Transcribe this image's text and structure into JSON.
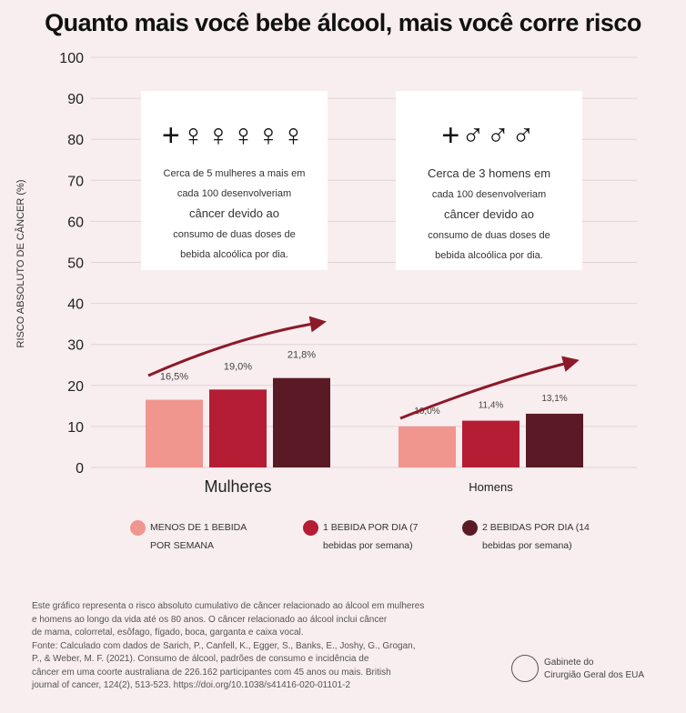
{
  "title": "Quanto mais você bebe álcool, mais você corre risco",
  "chart_data": {
    "type": "bar",
    "title": "Quanto mais você bebe álcool, mais você corre risco",
    "ylabel": "RISCO ABSOLUTO DE CÂNCER (%)",
    "ylim": [
      0,
      100
    ],
    "yticks": [
      "0",
      "10",
      "20",
      "30",
      "40",
      "50",
      "60",
      "70",
      "80",
      "90",
      "100"
    ],
    "categories": [
      "Mulheres",
      "Homens"
    ],
    "series": [
      {
        "name": "MENOS DE 1 BEBIDA POR SEMANA",
        "color": "#f0968e",
        "values": [
          16.5,
          10.0
        ],
        "labels": [
          "16,5%",
          "10,0%"
        ]
      },
      {
        "name": "1 BEBIDA POR DIA (7 bebidas por semana)",
        "color": "#b51d35",
        "values": [
          19.0,
          11.4
        ],
        "labels": [
          "19,0%",
          "11,4%"
        ]
      },
      {
        "name": "2 BEBIDAS POR DIA (14 bebidas por semana)",
        "color": "#5a1a25",
        "values": [
          21.8,
          13.1
        ],
        "labels": [
          "21,8%",
          "13,1%"
        ]
      }
    ],
    "grid": true,
    "legend": "bottom"
  },
  "legend": [
    {
      "line1": "MENOS DE 1 BEBIDA",
      "line2": "POR SEMANA"
    },
    {
      "line1": "1 BEBIDA POR DIA (7",
      "line2": "bebidas por semana)"
    },
    {
      "line1": "2 BEBIDAS POR DIA (14",
      "line2": "bebidas por semana)"
    }
  ],
  "callouts": [
    {
      "icons": "+ woman x5",
      "l1": "Cerca de 5 mulheres a mais em",
      "l2": "cada 100 desenvolveriam",
      "l3": "câncer devido ao",
      "l4": "consumo de duas doses de",
      "l5": "bebida alcoólica por dia."
    },
    {
      "icons": "+ man x3",
      "l1": "Cerca de 3 homens em",
      "l2": "cada 100 desenvolveriam",
      "l3": "câncer devido ao",
      "l4": "consumo de duas doses de",
      "l5": "bebida alcoólica por dia."
    }
  ],
  "footnote": {
    "l1": "Este gráfico representa o risco absoluto cumulativo de câncer relacionado ao álcool em mulheres",
    "l2": "e homens ao longo da vida até os 80 anos. O câncer relacionado ao álcool inclui câncer",
    "l3": "de mama, colorretal, esôfago, fígado, boca, garganta e caixa vocal.",
    "l4": "Fonte: Calculado com dados de Sarich, P., Canfell, K., Egger, S., Banks, E., Joshy, G., Grogan,",
    "l5": "P., & Weber, M. F. (2021). Consumo de álcool, padrões de consumo e incidência de",
    "l6": "câncer em uma coorte australiana de 226.162 participantes com 45 anos ou mais. British",
    "l7": "journal of cancer, 124(2), 513-523. https://doi.org/10.1038/s41416-020-01101-2"
  },
  "logo": {
    "l1": "Gabinete do",
    "l2": "Cirurgião Geral dos EUA"
  }
}
